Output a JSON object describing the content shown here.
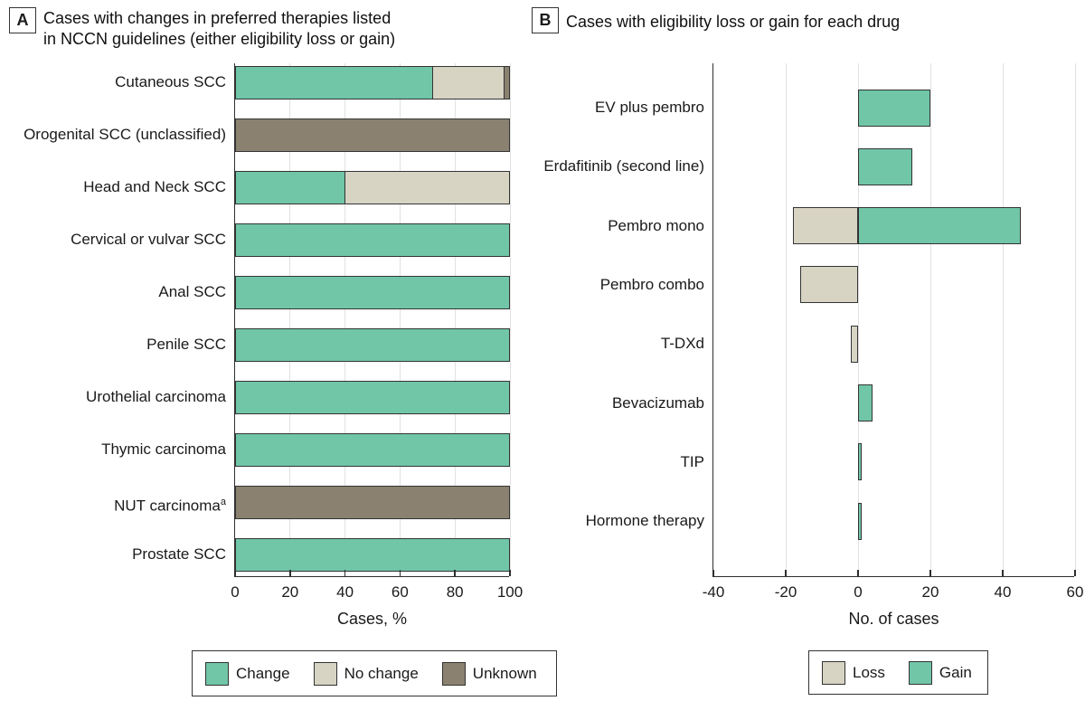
{
  "figure": {
    "colors": {
      "change_gain": "#70C6A7",
      "no_change_loss": "#D8D4C4",
      "unknown": "#8A8170",
      "bar_border": "#343434",
      "gridline": "#e1e1e1",
      "axis": "#2e2e2e",
      "text": "#1a1a1a"
    }
  },
  "panelA": {
    "tag": "A",
    "title_lines": [
      "Cases with changes in preferred therapies listed",
      "in NCCN guidelines (either eligibility loss or gain)"
    ],
    "legend": [
      {
        "label": "Change",
        "color": "#70C6A7"
      },
      {
        "label": "No change",
        "color": "#D8D4C4"
      },
      {
        "label": "Unknown",
        "color": "#8A8170"
      }
    ]
  },
  "panelB": {
    "tag": "B",
    "title": "Cases with eligibility loss or gain for each drug",
    "legend": [
      {
        "label": "Loss",
        "color": "#D8D4C4"
      },
      {
        "label": "Gain",
        "color": "#70C6A7"
      }
    ]
  },
  "chart_data": [
    {
      "panel": "A",
      "type": "bar",
      "orientation": "horizontal",
      "stacked": true,
      "categories": [
        "Cutaneous SCC",
        "Orogenital SCC (unclassified)",
        "Head and Neck SCC",
        "Cervical or vulvar SCC",
        "Anal SCC",
        "Penile SCC",
        "Urothelial carcinoma",
        "Thymic carcinoma",
        "NUT carcinoma",
        "Prostate SCC"
      ],
      "category_sup": [
        "",
        "",
        "",
        "",
        "",
        "",
        "",
        "",
        "a",
        ""
      ],
      "series": [
        {
          "name": "Change",
          "color": "#70C6A7",
          "values": [
            72,
            0,
            40,
            100,
            100,
            100,
            100,
            100,
            0,
            100
          ]
        },
        {
          "name": "No change",
          "color": "#D8D4C4",
          "values": [
            26,
            0,
            60,
            0,
            0,
            0,
            0,
            0,
            0,
            0
          ]
        },
        {
          "name": "Unknown",
          "color": "#8A8170",
          "values": [
            2,
            100,
            0,
            0,
            0,
            0,
            0,
            0,
            100,
            0
          ]
        }
      ],
      "xlabel": "Cases, %",
      "xlim": [
        0,
        100
      ],
      "xticks": [
        0,
        20,
        40,
        60,
        80,
        100
      ],
      "grid": true,
      "legend_position": "bottom"
    },
    {
      "panel": "B",
      "type": "bar",
      "orientation": "horizontal",
      "diverging": true,
      "categories": [
        "EV plus pembro",
        "Erdafitinib (second line)",
        "Pembro mono",
        "Pembro combo",
        "T-DXd",
        "Bevacizumab",
        "TIP",
        "Hormone therapy"
      ],
      "category_sup": [
        "",
        "",
        "",
        "",
        "",
        "",
        "",
        ""
      ],
      "series": [
        {
          "name": "Loss",
          "color": "#D8D4C4",
          "values": [
            0,
            0,
            -18,
            -16,
            -2,
            0,
            0,
            0
          ]
        },
        {
          "name": "Gain",
          "color": "#70C6A7",
          "values": [
            20,
            15,
            45,
            0,
            0,
            4,
            1,
            1
          ]
        }
      ],
      "xlabel": "No. of cases",
      "xlim": [
        -40,
        60
      ],
      "xticks": [
        -40,
        -20,
        0,
        20,
        40,
        60
      ],
      "grid": true,
      "legend_position": "bottom"
    }
  ]
}
